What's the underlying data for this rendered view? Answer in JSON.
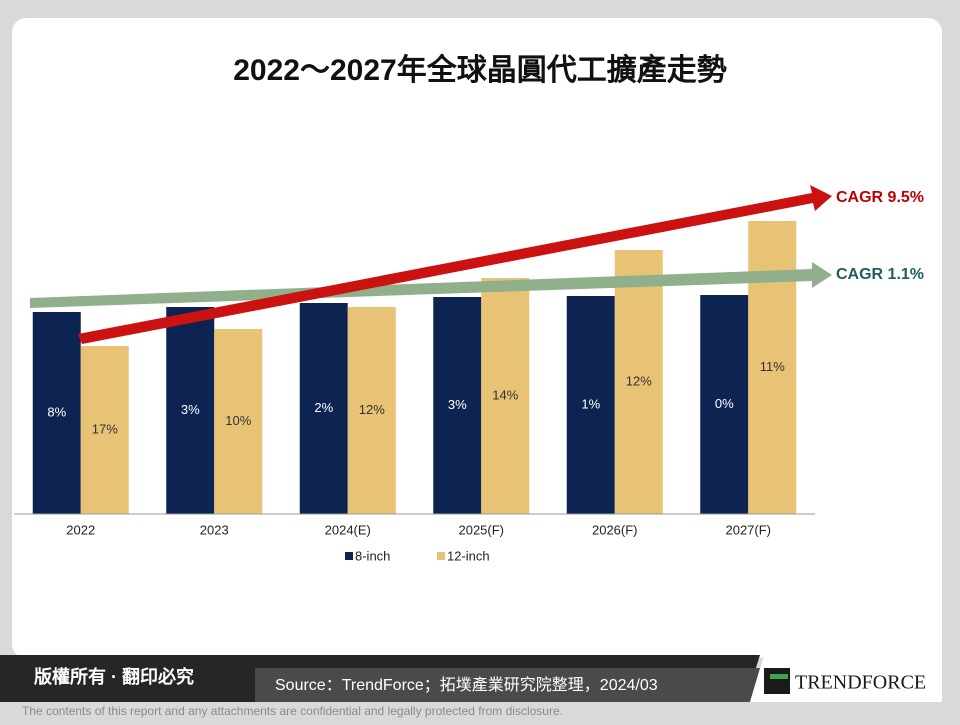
{
  "chart_data": {
    "type": "bar",
    "title": "2022～2027年全球晶圓代工擴產走勢",
    "categories": [
      "2022",
      "2023",
      "2024(E)",
      "2025(F)",
      "2026(F)",
      "2027(F)"
    ],
    "ylim": [
      0,
      400
    ],
    "series": [
      {
        "name": "8-inch",
        "color": "#0d2453",
        "values": [
          202,
          207,
          211,
          217,
          218,
          219
        ],
        "labels": [
          "8%",
          "3%",
          "2%",
          "3%",
          "1%",
          "0%"
        ]
      },
      {
        "name": "12-inch",
        "color": "#e8c275",
        "values": [
          168,
          185,
          207,
          236,
          264,
          293
        ],
        "labels": [
          "17%",
          "10%",
          "12%",
          "14%",
          "12%",
          "11%"
        ]
      }
    ],
    "annotations": [
      "CAGR 9.5%",
      "CAGR 1.1%"
    ]
  },
  "footer": {
    "rights": "版權所有 · 翻印必究",
    "source": "Source：TrendForce；拓墣產業研究院整理，2024/03",
    "logo": "TRENDFORCE",
    "disclaimer": "The contents of this report and any attachments are confidential and legally protected from disclosure."
  }
}
